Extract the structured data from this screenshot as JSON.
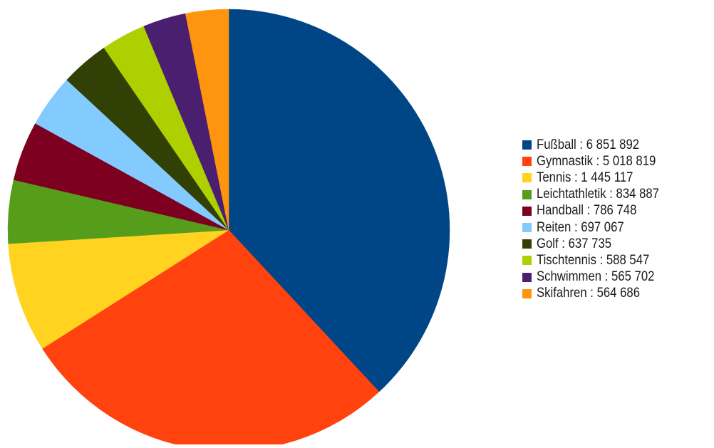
{
  "chart_data": {
    "type": "pie",
    "title": "",
    "start_angle_deg": 0,
    "direction": "clockwise",
    "legend_position": "right",
    "slices": [
      {
        "label": "Fußball",
        "value": 6851892,
        "legend_text": "Fußball : 6 851 892",
        "color": "#004586"
      },
      {
        "label": "Gymnastik",
        "value": 5018819,
        "legend_text": "Gymnastik : 5 018 819",
        "color": "#ff420e"
      },
      {
        "label": "Tennis",
        "value": 1445117,
        "legend_text": "Tennis : 1 445 117",
        "color": "#ffd320"
      },
      {
        "label": "Leichtathletik",
        "value": 834887,
        "legend_text": "Leichtathletik : 834 887",
        "color": "#579d1c"
      },
      {
        "label": "Handball",
        "value": 786748,
        "legend_text": "Handball : 786 748",
        "color": "#7e0021"
      },
      {
        "label": "Reiten",
        "value": 697067,
        "legend_text": "Reiten : 697 067",
        "color": "#83caff"
      },
      {
        "label": "Golf",
        "value": 637735,
        "legend_text": "Golf : 637 735",
        "color": "#314004"
      },
      {
        "label": "Tischtennis",
        "value": 588547,
        "legend_text": "Tischtennis : 588 547",
        "color": "#aecf00"
      },
      {
        "label": "Schwimmen",
        "value": 565702,
        "legend_text": "Schwimmen : 565 702",
        "color": "#4b1f6f"
      },
      {
        "label": "Skifahren",
        "value": 564686,
        "legend_text": "Skifahren : 564 686",
        "color": "#ff950e"
      }
    ]
  }
}
